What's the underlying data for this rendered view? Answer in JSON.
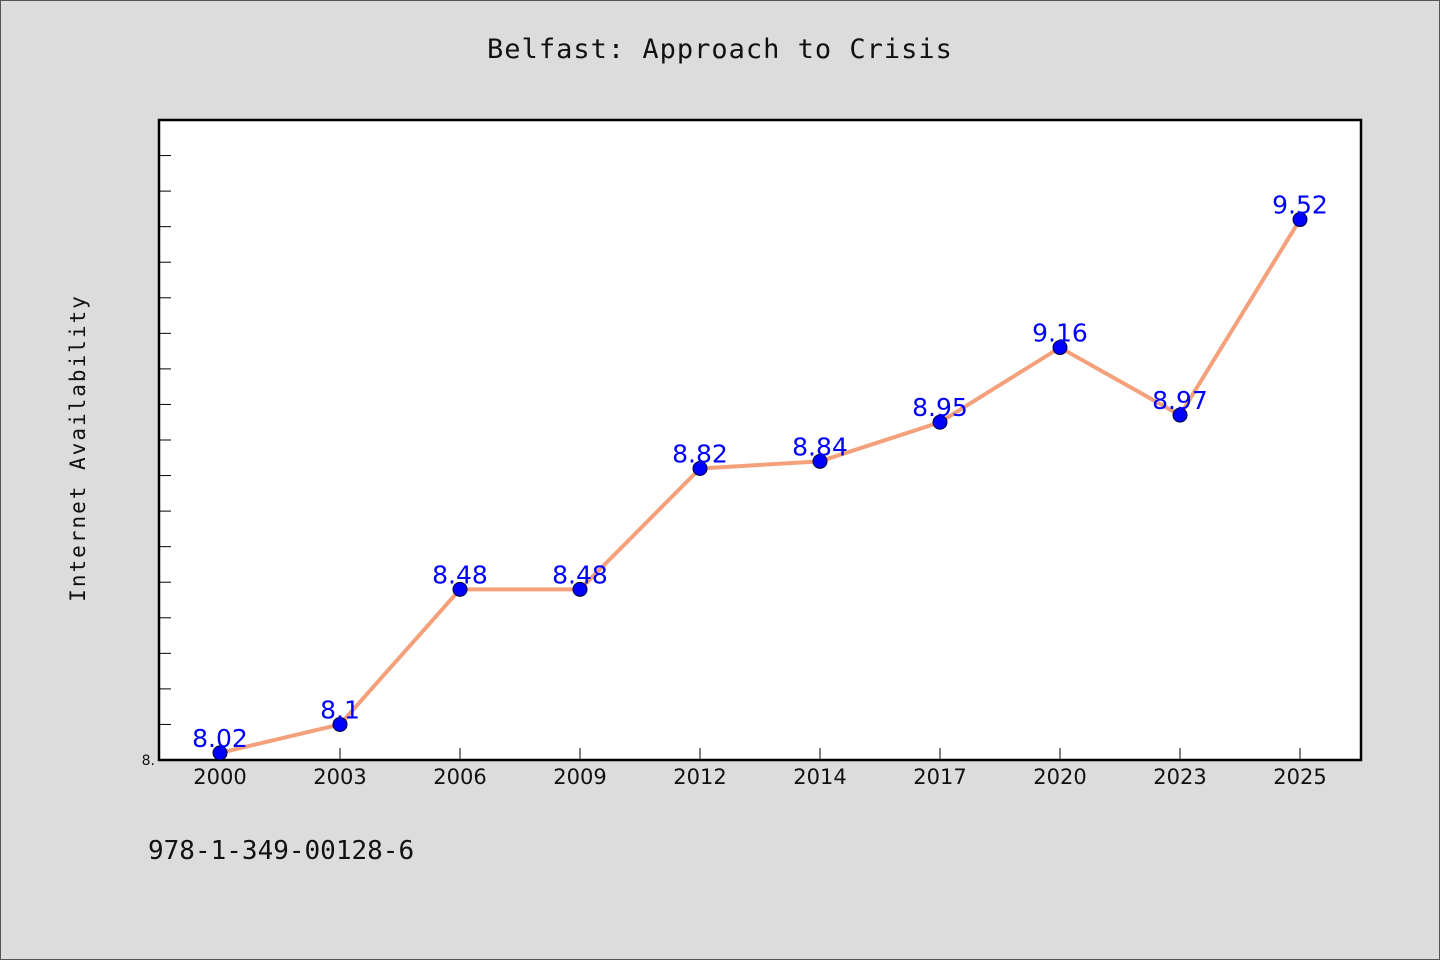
{
  "chart_data": {
    "type": "line",
    "title": "Belfast: Approach to Crisis",
    "xlabel": "",
    "ylabel": "Internet Availability",
    "categories": [
      "2000",
      "2003",
      "2006",
      "2009",
      "2012",
      "2014",
      "2017",
      "2020",
      "2023",
      "2025"
    ],
    "series": [
      {
        "values": [
          8.02,
          8.1,
          8.48,
          8.48,
          8.82,
          8.84,
          8.95,
          9.16,
          8.97,
          9.52
        ],
        "data_labels": [
          "8.02",
          "8.1",
          "8.48",
          "8.48",
          "8.82",
          "8.84",
          "8.95",
          "9.16",
          "8.97",
          "9.52"
        ]
      }
    ],
    "ylim": [
      8.0,
      9.8
    ],
    "y_tick_labels": [
      "8."
    ],
    "grid": false,
    "line_color": "#f4a07a",
    "marker_color": "#0000ff",
    "label_color": "#0000ff"
  },
  "footer": {
    "isbn": "978-1-349-00128-6"
  }
}
